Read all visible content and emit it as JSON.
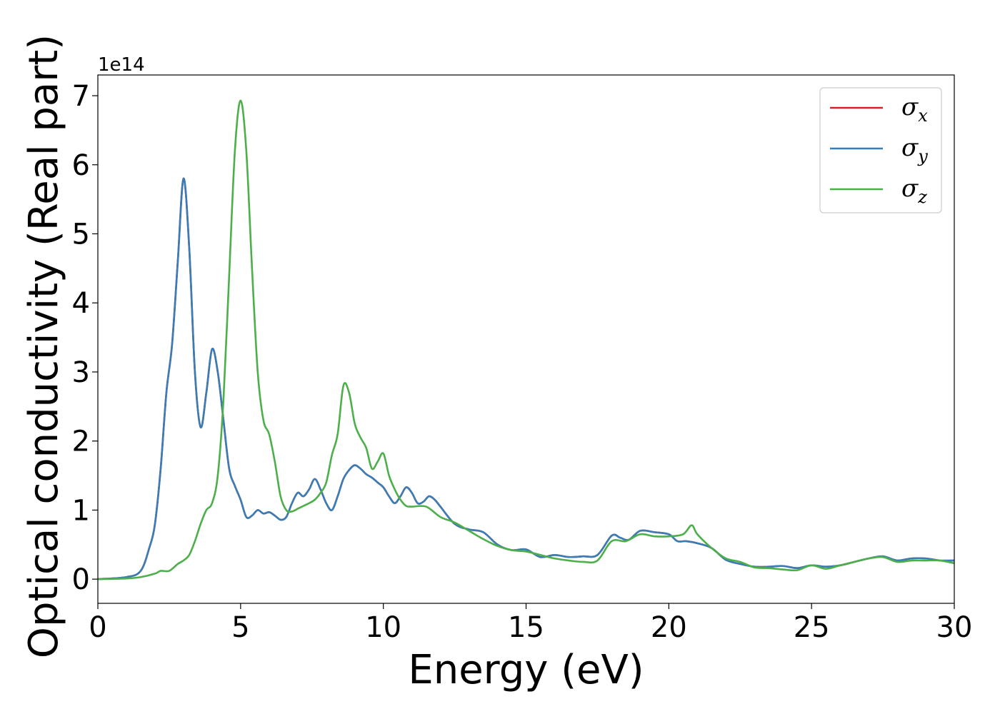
{
  "chart_data": {
    "type": "line",
    "title": "",
    "xlabel": "Energy (eV)",
    "ylabel": "Optical conductivity (Real part)",
    "y_offset_label": "1e14",
    "y_scale": 100000000000000.0,
    "xlim": [
      0,
      30
    ],
    "ylim": [
      -0.35,
      7.3
    ],
    "x_ticks": [
      0,
      5,
      10,
      15,
      20,
      25,
      30
    ],
    "y_ticks": [
      0,
      1,
      2,
      3,
      4,
      5,
      6,
      7
    ],
    "grid": false,
    "legend_position": "top-right",
    "series": [
      {
        "name": "x",
        "legend_symbol": "σ",
        "color": "#e41a1c",
        "x": [
          0,
          1,
          1.5,
          1.8,
          2,
          2.2,
          2.4,
          2.6,
          2.8,
          3,
          3.2,
          3.4,
          3.6,
          3.8,
          4,
          4.2,
          4.4,
          4.6,
          4.8,
          5,
          5.2,
          5.4,
          5.6,
          5.8,
          6,
          6.2,
          6.4,
          6.6,
          6.8,
          7,
          7.2,
          7.4,
          7.6,
          7.8,
          8,
          8.2,
          8.4,
          8.6,
          8.8,
          9,
          9.2,
          9.4,
          9.6,
          9.8,
          10,
          10.2,
          10.4,
          10.6,
          10.8,
          11,
          11.2,
          11.4,
          11.6,
          11.8,
          12,
          12.5,
          13,
          13.5,
          14,
          14.5,
          15,
          15.5,
          16,
          16.5,
          17,
          17.5,
          18,
          18.3,
          18.6,
          19,
          19.5,
          20,
          20.3,
          20.6,
          21,
          21.5,
          22,
          22.5,
          23,
          23.5,
          24,
          24.5,
          25,
          25.5,
          26,
          26.5,
          27,
          27.5,
          28,
          28.5,
          29,
          29.5,
          30
        ],
        "values": [
          0,
          0.03,
          0.12,
          0.45,
          0.8,
          1.6,
          2.7,
          3.4,
          4.6,
          5.8,
          4.8,
          3.0,
          2.2,
          2.7,
          3.33,
          3.0,
          2.3,
          1.6,
          1.35,
          1.15,
          0.9,
          0.92,
          1.0,
          0.95,
          0.97,
          0.92,
          0.86,
          0.9,
          1.1,
          1.25,
          1.2,
          1.3,
          1.45,
          1.3,
          1.1,
          1.0,
          1.2,
          1.45,
          1.58,
          1.65,
          1.6,
          1.52,
          1.47,
          1.4,
          1.33,
          1.2,
          1.1,
          1.2,
          1.33,
          1.25,
          1.1,
          1.12,
          1.2,
          1.15,
          1.05,
          0.8,
          0.72,
          0.68,
          0.5,
          0.42,
          0.43,
          0.32,
          0.35,
          0.32,
          0.33,
          0.35,
          0.63,
          0.6,
          0.57,
          0.7,
          0.68,
          0.65,
          0.55,
          0.55,
          0.52,
          0.45,
          0.28,
          0.22,
          0.18,
          0.18,
          0.19,
          0.16,
          0.2,
          0.18,
          0.2,
          0.25,
          0.3,
          0.33,
          0.27,
          0.3,
          0.3,
          0.27,
          0.27
        ]
      },
      {
        "name": "y",
        "legend_symbol": "σ",
        "color": "#377eb8",
        "x": [
          0,
          1,
          1.5,
          1.8,
          2,
          2.2,
          2.4,
          2.6,
          2.8,
          3,
          3.2,
          3.4,
          3.6,
          3.8,
          4,
          4.2,
          4.4,
          4.6,
          4.8,
          5,
          5.2,
          5.4,
          5.6,
          5.8,
          6,
          6.2,
          6.4,
          6.6,
          6.8,
          7,
          7.2,
          7.4,
          7.6,
          7.8,
          8,
          8.2,
          8.4,
          8.6,
          8.8,
          9,
          9.2,
          9.4,
          9.6,
          9.8,
          10,
          10.2,
          10.4,
          10.6,
          10.8,
          11,
          11.2,
          11.4,
          11.6,
          11.8,
          12,
          12.5,
          13,
          13.5,
          14,
          14.5,
          15,
          15.5,
          16,
          16.5,
          17,
          17.5,
          18,
          18.3,
          18.6,
          19,
          19.5,
          20,
          20.3,
          20.6,
          21,
          21.5,
          22,
          22.5,
          23,
          23.5,
          24,
          24.5,
          25,
          25.5,
          26,
          26.5,
          27,
          27.5,
          28,
          28.5,
          29,
          29.5,
          30
        ],
        "values": [
          0,
          0.03,
          0.12,
          0.45,
          0.8,
          1.6,
          2.7,
          3.4,
          4.6,
          5.8,
          4.8,
          3.0,
          2.2,
          2.7,
          3.33,
          3.0,
          2.3,
          1.6,
          1.35,
          1.15,
          0.9,
          0.92,
          1.0,
          0.95,
          0.97,
          0.92,
          0.86,
          0.9,
          1.1,
          1.25,
          1.2,
          1.3,
          1.45,
          1.3,
          1.1,
          1.0,
          1.2,
          1.45,
          1.58,
          1.65,
          1.6,
          1.52,
          1.47,
          1.4,
          1.33,
          1.2,
          1.1,
          1.2,
          1.33,
          1.25,
          1.1,
          1.12,
          1.2,
          1.15,
          1.05,
          0.8,
          0.72,
          0.68,
          0.5,
          0.42,
          0.43,
          0.32,
          0.35,
          0.32,
          0.33,
          0.35,
          0.63,
          0.6,
          0.57,
          0.7,
          0.68,
          0.65,
          0.55,
          0.55,
          0.52,
          0.45,
          0.28,
          0.22,
          0.18,
          0.18,
          0.19,
          0.16,
          0.2,
          0.18,
          0.2,
          0.25,
          0.3,
          0.33,
          0.27,
          0.3,
          0.3,
          0.27,
          0.27
        ]
      },
      {
        "name": "z",
        "legend_symbol": "σ",
        "color": "#4daf4a",
        "x": [
          0,
          1,
          1.5,
          2,
          2.2,
          2.5,
          2.8,
          3,
          3.2,
          3.4,
          3.6,
          3.8,
          4,
          4.2,
          4.4,
          4.6,
          4.8,
          5,
          5.2,
          5.4,
          5.6,
          5.8,
          6,
          6.2,
          6.4,
          6.6,
          6.8,
          7,
          7.2,
          7.4,
          7.6,
          7.8,
          8,
          8.2,
          8.4,
          8.6,
          8.8,
          9,
          9.2,
          9.4,
          9.6,
          9.8,
          10,
          10.2,
          10.4,
          10.6,
          10.8,
          11,
          11.5,
          12,
          12.5,
          13,
          13.5,
          14,
          14.5,
          15,
          15.5,
          16,
          16.5,
          17,
          17.5,
          18,
          18.5,
          19,
          19.5,
          20,
          20.5,
          20.8,
          21,
          21.5,
          22,
          22.5,
          23,
          23.5,
          24,
          24.5,
          25,
          25.5,
          26,
          26.5,
          27,
          27.5,
          28,
          28.5,
          29,
          29.5,
          30
        ],
        "values": [
          0,
          0.01,
          0.03,
          0.08,
          0.12,
          0.12,
          0.22,
          0.27,
          0.35,
          0.55,
          0.8,
          1.0,
          1.1,
          1.5,
          2.6,
          4.4,
          6.2,
          6.93,
          6.2,
          4.5,
          3.0,
          2.3,
          2.1,
          1.7,
          1.2,
          1.0,
          0.98,
          1.02,
          1.06,
          1.1,
          1.15,
          1.25,
          1.4,
          1.8,
          2.1,
          2.8,
          2.7,
          2.25,
          2.05,
          1.9,
          1.6,
          1.7,
          1.82,
          1.5,
          1.3,
          1.15,
          1.06,
          1.05,
          1.05,
          0.9,
          0.82,
          0.7,
          0.58,
          0.48,
          0.42,
          0.4,
          0.35,
          0.3,
          0.27,
          0.25,
          0.27,
          0.55,
          0.55,
          0.65,
          0.62,
          0.62,
          0.65,
          0.78,
          0.65,
          0.45,
          0.3,
          0.25,
          0.17,
          0.16,
          0.14,
          0.13,
          0.2,
          0.15,
          0.2,
          0.25,
          0.3,
          0.32,
          0.25,
          0.27,
          0.27,
          0.27,
          0.23
        ]
      }
    ]
  }
}
